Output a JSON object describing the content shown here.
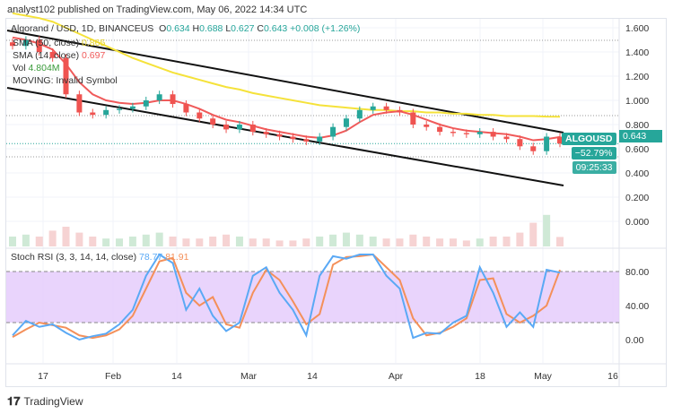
{
  "header": {
    "published": "analyst102 published on TradingView.com, May 06, 2022 14:34 UTC"
  },
  "legend": {
    "symbol": "Algorand / USD, 1D, BINANCEUS",
    "o_label": "O",
    "o": "0.634",
    "h_label": "H",
    "h": "0.688",
    "l_label": "L",
    "l": "0.627",
    "c_label": "C",
    "c": "0.643",
    "change": "+0.008 (+1.26%)",
    "sma50": "SMA (50, close)",
    "sma50_val": "0.865",
    "sma14": "SMA (14, close)",
    "sma14_val": "0.697",
    "vol": "Vol",
    "vol_val": "4.804M",
    "moving": "MOVING: Invalid Symbol"
  },
  "price_badge": {
    "symbol": "ALGOUSD",
    "price": "0.643",
    "change": "−52.79%",
    "countdown": "09:25:33"
  },
  "stoch": {
    "label": "Stoch RSI (3, 3, 14, 14, close)",
    "k": "78.77",
    "d": "81.91"
  },
  "footer": {
    "brand": "TradingView"
  },
  "colors": {
    "up": "#26a69a",
    "down": "#ef5350",
    "sma50": "#f5e23a",
    "sma14": "#f05a5a",
    "k": "#5aa9f5",
    "d": "#f4905a",
    "band": "#e3c9fb"
  },
  "chart_data": [
    {
      "type": "candlestick",
      "ylim": [
        -0.1,
        1.65
      ],
      "yticks": [
        "1.600",
        "1.400",
        "1.200",
        "1.000",
        "0.800",
        "0.600",
        "0.400",
        "0.200",
        "0.000"
      ],
      "xticks": [
        "17",
        "Feb",
        "14",
        "Mar",
        "14",
        "Apr",
        "18",
        "May",
        "16"
      ],
      "dates": [
        "Jan8",
        "Jan11",
        "Jan14",
        "Jan17",
        "Jan19",
        "Jan21",
        "Jan24",
        "Jan27",
        "Jan30",
        "Feb2",
        "Feb5",
        "Feb8",
        "Feb11",
        "Feb14",
        "Feb17",
        "Feb20",
        "Feb23",
        "Feb26",
        "Mar1",
        "Mar4",
        "Mar7",
        "Mar10",
        "Mar13",
        "Mar16",
        "Mar19",
        "Mar22",
        "Mar25",
        "Mar28",
        "Mar31",
        "Apr3",
        "Apr6",
        "Apr9",
        "Apr12",
        "Apr15",
        "Apr18",
        "Apr21",
        "Apr24",
        "Apr27",
        "Apr30",
        "May2",
        "May4",
        "May6"
      ],
      "close": [
        1.45,
        1.5,
        1.4,
        1.35,
        1.05,
        0.9,
        0.88,
        0.92,
        0.93,
        0.95,
        1.0,
        1.05,
        0.97,
        0.9,
        0.85,
        0.8,
        0.76,
        0.8,
        0.74,
        0.72,
        0.7,
        0.68,
        0.66,
        0.7,
        0.78,
        0.85,
        0.92,
        0.95,
        0.92,
        0.9,
        0.8,
        0.78,
        0.74,
        0.73,
        0.72,
        0.74,
        0.7,
        0.68,
        0.62,
        0.58,
        0.7,
        0.643
      ],
      "sma14": [
        1.52,
        1.5,
        1.47,
        1.42,
        1.3,
        1.15,
        1.05,
        1.0,
        0.98,
        0.97,
        0.98,
        1.0,
        1.0,
        0.97,
        0.93,
        0.88,
        0.84,
        0.82,
        0.79,
        0.76,
        0.74,
        0.72,
        0.7,
        0.69,
        0.71,
        0.75,
        0.82,
        0.88,
        0.9,
        0.91,
        0.88,
        0.84,
        0.8,
        0.77,
        0.75,
        0.74,
        0.73,
        0.72,
        0.7,
        0.67,
        0.68,
        0.697
      ],
      "sma50": [
        1.72,
        1.7,
        1.68,
        1.65,
        1.6,
        1.55,
        1.5,
        1.45,
        1.4,
        1.35,
        1.31,
        1.27,
        1.23,
        1.2,
        1.17,
        1.14,
        1.11,
        1.09,
        1.06,
        1.04,
        1.02,
        1.0,
        0.98,
        0.96,
        0.95,
        0.94,
        0.93,
        0.92,
        0.92,
        0.91,
        0.91,
        0.9,
        0.9,
        0.89,
        0.89,
        0.88,
        0.88,
        0.87,
        0.87,
        0.87,
        0.866,
        0.865
      ],
      "volume_m": [
        5,
        6,
        5,
        8,
        10,
        7,
        5,
        4,
        4,
        5,
        6,
        7,
        5,
        4,
        4,
        5,
        6,
        5,
        4,
        4,
        3,
        3,
        4,
        5,
        6,
        7,
        6,
        5,
        4,
        4,
        6,
        5,
        4,
        4,
        3,
        4,
        5,
        5,
        7,
        12,
        16,
        4.804
      ]
    },
    {
      "type": "line",
      "name": "Stoch RSI",
      "ylim": [
        -25,
        115
      ],
      "yticks": [
        "80.00",
        "40.00",
        "0.00"
      ],
      "bands": [
        20,
        80
      ],
      "k": [
        5,
        22,
        15,
        18,
        8,
        0,
        4,
        7,
        18,
        35,
        75,
        100,
        90,
        35,
        60,
        28,
        10,
        20,
        75,
        85,
        55,
        35,
        5,
        75,
        98,
        95,
        100,
        100,
        75,
        60,
        2,
        8,
        7,
        20,
        28,
        85,
        55,
        15,
        32,
        15,
        82,
        78.77
      ],
      "d": [
        3,
        12,
        20,
        17,
        14,
        5,
        2,
        5,
        12,
        28,
        60,
        92,
        96,
        55,
        40,
        50,
        18,
        14,
        55,
        82,
        70,
        45,
        18,
        30,
        88,
        97,
        98,
        100,
        85,
        70,
        25,
        5,
        8,
        15,
        25,
        70,
        72,
        30,
        20,
        28,
        40,
        81.91
      ]
    }
  ]
}
